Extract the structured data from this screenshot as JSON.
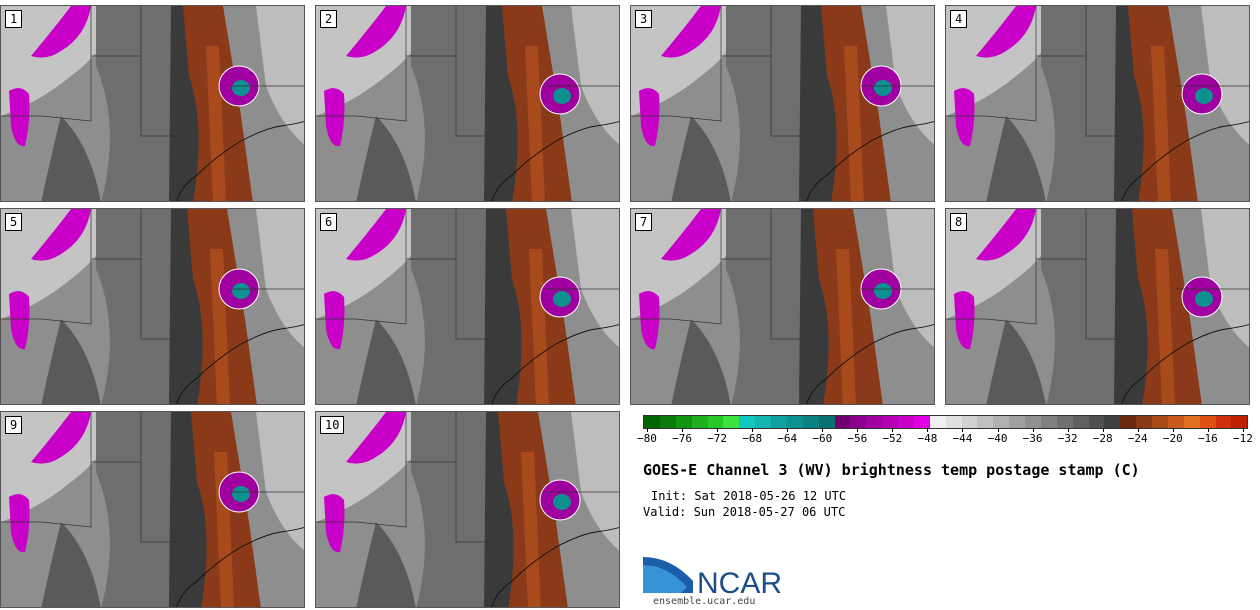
{
  "panels": [
    {
      "label": "1"
    },
    {
      "label": "2"
    },
    {
      "label": "3"
    },
    {
      "label": "4"
    },
    {
      "label": "5"
    },
    {
      "label": "6"
    },
    {
      "label": "7"
    },
    {
      "label": "8"
    },
    {
      "label": "9"
    },
    {
      "label": "10"
    }
  ],
  "colorbar": {
    "ticks": [
      "−80",
      "−76",
      "−72",
      "−68",
      "−64",
      "−60",
      "−56",
      "−52",
      "−48",
      "−44",
      "−40",
      "−36",
      "−32",
      "−28",
      "−24",
      "−20",
      "−16",
      "−12"
    ],
    "colors": [
      "#006400",
      "#0a7a0a",
      "#129612",
      "#1eb01e",
      "#28c828",
      "#3ee23e",
      "#10c8c0",
      "#14b4b0",
      "#10a0a0",
      "#0c9090",
      "#0a8080",
      "#087070",
      "#700070",
      "#8a008a",
      "#a000a0",
      "#b400b4",
      "#c800c8",
      "#e000e0",
      "#f0f0f0",
      "#e0e0e0",
      "#d0d0d0",
      "#c0c0c0",
      "#b0b0b0",
      "#a0a0a0",
      "#909090",
      "#808080",
      "#707070",
      "#606060",
      "#505050",
      "#404040",
      "#6a2a10",
      "#8a3a14",
      "#a84a18",
      "#c85a1c",
      "#e07020",
      "#e05010",
      "#d03010",
      "#c02000"
    ]
  },
  "title": "GOES-E Channel 3 (WV) brightness temp postage stamp (C)",
  "init": "Init: Sat 2018-05-26 12 UTC",
  "valid": "Valid: Sun 2018-05-27 06 UTC",
  "logo_text": "NCAR",
  "url": "ensemble.ucar.edu"
}
